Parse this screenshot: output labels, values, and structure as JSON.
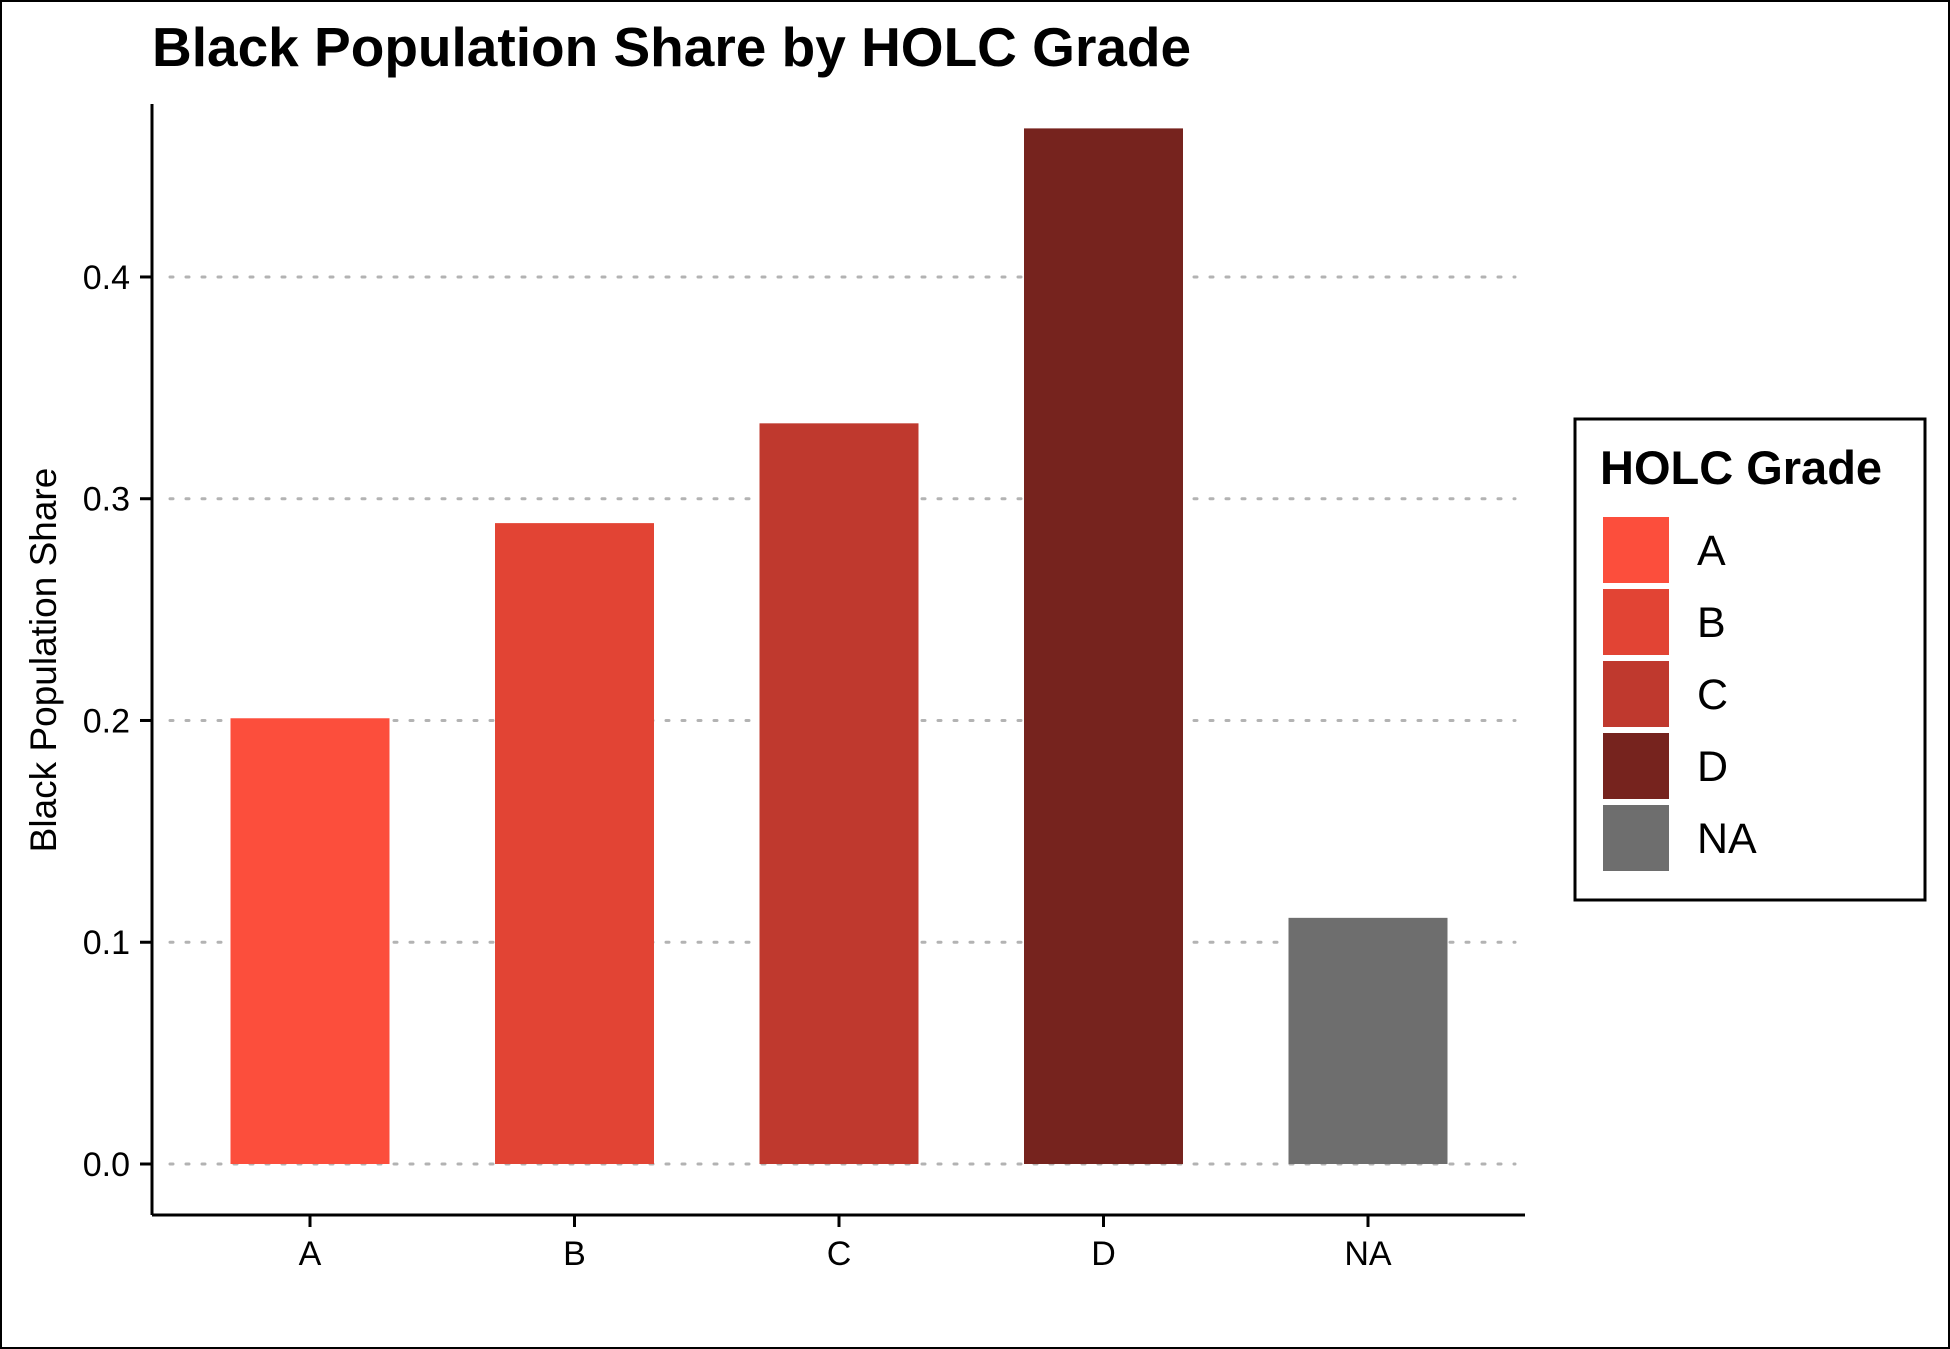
{
  "chart_data": {
    "type": "bar",
    "title": "Black Population Share by HOLC Grade",
    "xlabel": "",
    "ylabel": "Black Population Share",
    "categories": [
      "A",
      "B",
      "C",
      "D",
      "NA"
    ],
    "values": [
      0.201,
      0.289,
      0.334,
      0.467,
      0.111
    ],
    "colors": [
      "#FC4E3C",
      "#E24434",
      "#BF392E",
      "#76231E",
      "#6E6E6E"
    ],
    "ylim": [
      -0.023,
      0.478
    ],
    "yticks": [
      0.0,
      0.1,
      0.2,
      0.3,
      0.4
    ],
    "ytick_labels": [
      "0.0",
      "0.1",
      "0.2",
      "0.3",
      "0.4"
    ],
    "grid": "horizontal dotted",
    "legend": {
      "title": "HOLC Grade",
      "placement": "right",
      "entries": [
        "A",
        "B",
        "C",
        "D",
        "NA"
      ]
    }
  }
}
